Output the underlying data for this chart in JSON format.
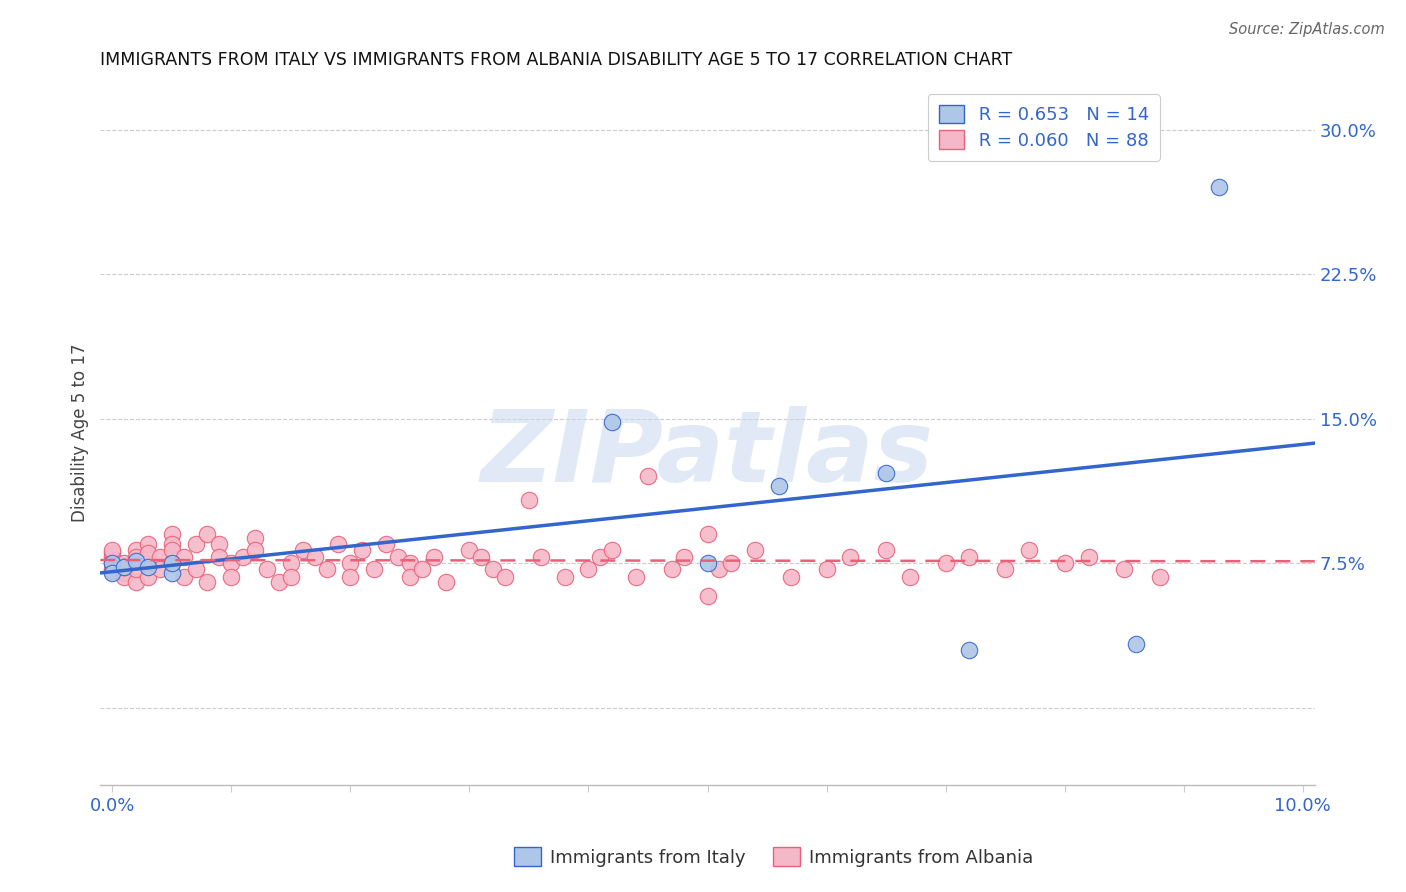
{
  "title": "IMMIGRANTS FROM ITALY VS IMMIGRANTS FROM ALBANIA DISABILITY AGE 5 TO 17 CORRELATION CHART",
  "source": "Source: ZipAtlas.com",
  "ylabel": "Disability Age 5 to 17",
  "xlim": [
    -0.001,
    0.101
  ],
  "ylim": [
    -0.04,
    0.325
  ],
  "ytick_vals": [
    0.0,
    0.075,
    0.15,
    0.225,
    0.3
  ],
  "ytick_labels": [
    "",
    "7.5%",
    "15.0%",
    "22.5%",
    "30.0%"
  ],
  "xtick_vals": [
    0.0,
    0.01,
    0.02,
    0.03,
    0.04,
    0.05,
    0.06,
    0.07,
    0.08,
    0.09,
    0.1
  ],
  "xtick_labels": [
    "0.0%",
    "",
    "",
    "",
    "",
    "",
    "",
    "",
    "",
    "",
    "10.0%"
  ],
  "legend_italy_r": "R = 0.653",
  "legend_italy_n": "N = 14",
  "legend_albania_r": "R = 0.060",
  "legend_albania_n": "N = 88",
  "italy_color": "#aec6e8",
  "albania_color": "#f5b8c8",
  "italy_line_color": "#3366cc",
  "albania_line_color": "#e8607a",
  "watermark": "ZIPatlas",
  "italy_scatter_x": [
    0.0,
    0.0,
    0.001,
    0.002,
    0.003,
    0.005,
    0.005,
    0.042,
    0.05,
    0.056,
    0.065,
    0.072,
    0.086,
    0.093
  ],
  "italy_scatter_y": [
    0.075,
    0.07,
    0.073,
    0.076,
    0.073,
    0.07,
    0.075,
    0.148,
    0.075,
    0.115,
    0.122,
    0.03,
    0.033,
    0.27
  ],
  "albania_scatter_x": [
    0.0,
    0.0,
    0.0,
    0.0,
    0.0,
    0.0,
    0.001,
    0.001,
    0.001,
    0.001,
    0.002,
    0.002,
    0.002,
    0.002,
    0.003,
    0.003,
    0.003,
    0.003,
    0.004,
    0.004,
    0.005,
    0.005,
    0.005,
    0.005,
    0.006,
    0.006,
    0.007,
    0.007,
    0.008,
    0.008,
    0.009,
    0.009,
    0.01,
    0.01,
    0.011,
    0.012,
    0.012,
    0.013,
    0.014,
    0.015,
    0.015,
    0.016,
    0.017,
    0.018,
    0.019,
    0.02,
    0.02,
    0.021,
    0.022,
    0.023,
    0.024,
    0.025,
    0.025,
    0.026,
    0.027,
    0.028,
    0.03,
    0.031,
    0.032,
    0.033,
    0.035,
    0.036,
    0.038,
    0.04,
    0.041,
    0.042,
    0.044,
    0.045,
    0.047,
    0.048,
    0.05,
    0.05,
    0.051,
    0.052,
    0.054,
    0.057,
    0.06,
    0.062,
    0.065,
    0.067,
    0.07,
    0.072,
    0.075,
    0.077,
    0.08,
    0.082,
    0.085,
    0.088
  ],
  "albania_scatter_y": [
    0.075,
    0.078,
    0.072,
    0.08,
    0.082,
    0.071,
    0.07,
    0.075,
    0.068,
    0.073,
    0.082,
    0.078,
    0.065,
    0.072,
    0.085,
    0.075,
    0.068,
    0.08,
    0.078,
    0.072,
    0.09,
    0.085,
    0.075,
    0.082,
    0.078,
    0.068,
    0.085,
    0.072,
    0.09,
    0.065,
    0.085,
    0.078,
    0.075,
    0.068,
    0.078,
    0.088,
    0.082,
    0.072,
    0.065,
    0.075,
    0.068,
    0.082,
    0.078,
    0.072,
    0.085,
    0.075,
    0.068,
    0.082,
    0.072,
    0.085,
    0.078,
    0.075,
    0.068,
    0.072,
    0.078,
    0.065,
    0.082,
    0.078,
    0.072,
    0.068,
    0.108,
    0.078,
    0.068,
    0.072,
    0.078,
    0.082,
    0.068,
    0.12,
    0.072,
    0.078,
    0.09,
    0.058,
    0.072,
    0.075,
    0.082,
    0.068,
    0.072,
    0.078,
    0.082,
    0.068,
    0.075,
    0.078,
    0.072,
    0.082,
    0.075,
    0.078,
    0.072,
    0.068
  ]
}
